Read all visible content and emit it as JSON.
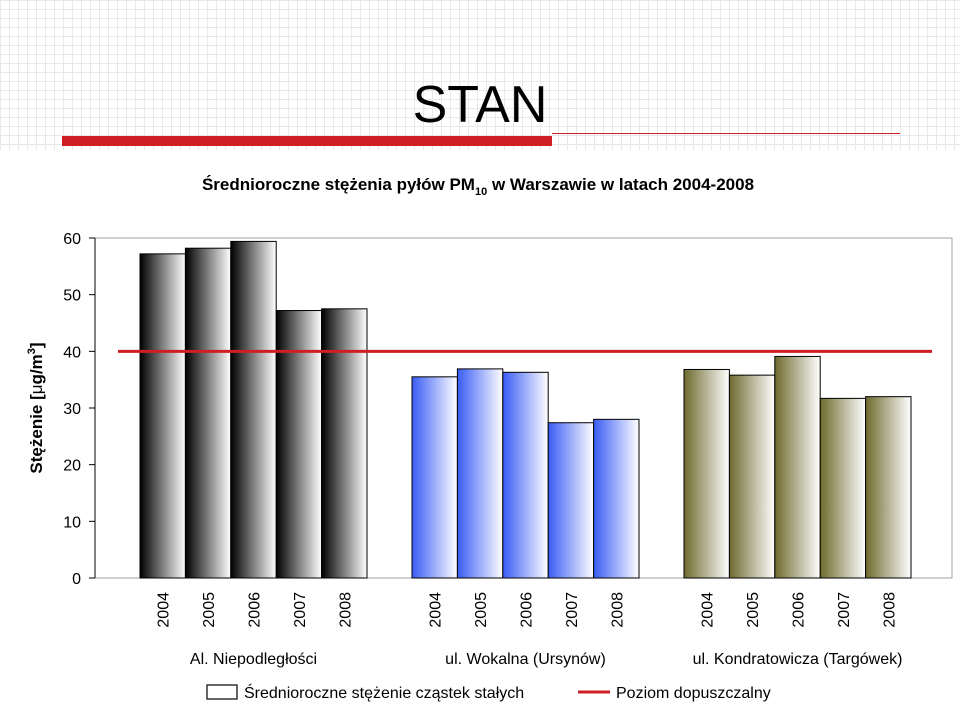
{
  "slide": {
    "title": "STAN"
  },
  "chart_data": {
    "type": "bar",
    "title_parts": [
      "Średnioroczne stężenia pyłów PM",
      "10",
      " w Warszawie w latach 2004-2008"
    ],
    "ylabel_parts": [
      "Stężenie [",
      "μ",
      "g/m",
      "3",
      "]"
    ],
    "ylim": [
      0,
      60
    ],
    "yticks": [
      0,
      10,
      20,
      30,
      40,
      50,
      60
    ],
    "groups": [
      {
        "name": "Al. Niepodległości",
        "color": "#000000",
        "categories": [
          "2004",
          "2005",
          "2006",
          "2007",
          "2008"
        ],
        "values": [
          57.2,
          58.2,
          59.4,
          47.2,
          47.5
        ]
      },
      {
        "name": "ul. Wokalna (Ursynów)",
        "color": "#3a5cf5",
        "categories": [
          "2004",
          "2005",
          "2006",
          "2007",
          "2008"
        ],
        "values": [
          35.5,
          36.9,
          36.3,
          27.4,
          28.0
        ]
      },
      {
        "name": "ul. Kondratowicza (Targówek)",
        "color": "#6e6a2e",
        "categories": [
          "2004",
          "2005",
          "2006",
          "2007",
          "2008"
        ],
        "values": [
          36.8,
          35.8,
          39.1,
          31.7,
          32.0
        ]
      }
    ],
    "reference_line": {
      "value": 40,
      "color": "#d01f24"
    },
    "legend": {
      "bars_label": "Średnioroczne stężenie cząstek stałych",
      "line_label": "Poziom dopuszczalny"
    }
  }
}
